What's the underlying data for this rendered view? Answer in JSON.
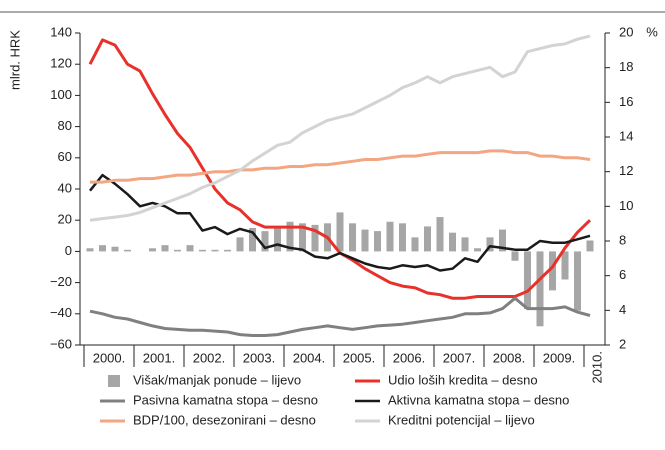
{
  "chart_data": {
    "type": "combo",
    "y_label": "mlrd. HRK",
    "y2_label": "%",
    "x": [
      2000,
      2000.25,
      2000.5,
      2000.75,
      2001,
      2001.25,
      2001.5,
      2001.75,
      2002,
      2002.25,
      2002.5,
      2002.75,
      2003,
      2003.25,
      2003.5,
      2003.75,
      2004,
      2004.25,
      2004.5,
      2004.75,
      2005,
      2005.25,
      2005.5,
      2005.75,
      2006,
      2006.25,
      2006.5,
      2006.75,
      2007,
      2007.25,
      2007.5,
      2007.75,
      2008,
      2008.25,
      2008.5,
      2008.75,
      2009,
      2009.25,
      2009.5,
      2009.75,
      2010
    ],
    "xlim": [
      1999.8,
      2010.3
    ],
    "xticks": [
      {
        "value": 2000,
        "label": "2000."
      },
      {
        "value": 2001,
        "label": "2001."
      },
      {
        "value": 2002,
        "label": "2002."
      },
      {
        "value": 2003,
        "label": "2003."
      },
      {
        "value": 2004,
        "label": "2004."
      },
      {
        "value": 2005,
        "label": "2005."
      },
      {
        "value": 2006,
        "label": "2006."
      },
      {
        "value": 2007,
        "label": "2007."
      },
      {
        "value": 2008,
        "label": "2008."
      },
      {
        "value": 2009,
        "label": "2009."
      },
      {
        "value": 2010,
        "label": "2010."
      }
    ],
    "ylim": [
      -60,
      140
    ],
    "yticks": [
      {
        "value": -60,
        "label": "−60"
      },
      {
        "value": -40,
        "label": "−40"
      },
      {
        "value": -20,
        "label": "−20"
      },
      0,
      20,
      40,
      60,
      80,
      100,
      120,
      140
    ],
    "y2lim": [
      2,
      20
    ],
    "y2ticks": [
      2,
      4,
      6,
      8,
      10,
      12,
      14,
      16,
      18,
      20
    ],
    "series": [
      {
        "name": "Višak/manjak ponude – lijevo",
        "type": "bar",
        "color": "#a6a6a6",
        "values": [
          2,
          4,
          3,
          1,
          0,
          2,
          4,
          1,
          4,
          1,
          1,
          1,
          9,
          15,
          13,
          15,
          19,
          18,
          17,
          18,
          25,
          18,
          14,
          13,
          19,
          18,
          9,
          16,
          22,
          12,
          9,
          2,
          9,
          14,
          -6,
          -37,
          -48,
          -25,
          -18,
          -38,
          7
        ]
      },
      {
        "name": "Udio loših kredita – desno",
        "type": "line",
        "axis": "y2",
        "color": "#e8312a",
        "width": 3,
        "values": [
          18.2,
          19.6,
          19.3,
          18.2,
          17.8,
          16.5,
          15.3,
          14.2,
          13.4,
          12.2,
          11.0,
          10.2,
          9.8,
          9.1,
          8.8,
          8.8,
          8.8,
          8.8,
          8.6,
          8.2,
          7.3,
          6.9,
          6.4,
          6.0,
          5.6,
          5.4,
          5.3,
          5.0,
          4.9,
          4.7,
          4.7,
          4.8,
          4.8,
          4.8,
          4.8,
          5.1,
          5.8,
          6.5,
          7.6,
          8.5,
          9.2
        ]
      },
      {
        "name": "Pasivna kamatna stopa – desno",
        "type": "line",
        "axis": "y2",
        "color": "#808080",
        "width": 3,
        "values": [
          3.95,
          3.8,
          3.6,
          3.5,
          3.3,
          3.1,
          2.95,
          2.9,
          2.85,
          2.85,
          2.8,
          2.75,
          2.6,
          2.55,
          2.55,
          2.6,
          2.75,
          2.9,
          3.0,
          3.1,
          3.0,
          2.9,
          3.0,
          3.1,
          3.15,
          3.2,
          3.3,
          3.4,
          3.5,
          3.6,
          3.8,
          3.8,
          3.85,
          4.1,
          4.7,
          4.1,
          4.1,
          4.1,
          4.2,
          3.9,
          3.7
        ]
      },
      {
        "name": "Aktivna kamatna stopa – desno",
        "type": "line",
        "axis": "y2",
        "color": "#1a1a1a",
        "width": 2.5,
        "values": [
          10.9,
          11.8,
          11.3,
          10.7,
          10.0,
          10.2,
          10.0,
          9.6,
          9.6,
          8.6,
          8.8,
          8.4,
          8.7,
          8.5,
          7.6,
          7.8,
          7.6,
          7.5,
          7.1,
          7.0,
          7.3,
          7.0,
          6.7,
          6.5,
          6.4,
          6.6,
          6.5,
          6.6,
          6.3,
          6.4,
          7.0,
          6.8,
          7.7,
          7.6,
          7.5,
          7.5,
          8.0,
          7.9,
          7.9,
          8.1,
          8.3
        ]
      },
      {
        "name": "BDP/100, desezonirani – desno",
        "type": "line",
        "axis": "y2",
        "color": "#f4a582",
        "width": 3,
        "values": [
          11.4,
          11.4,
          11.5,
          11.5,
          11.6,
          11.6,
          11.7,
          11.8,
          11.8,
          11.9,
          12.0,
          12.0,
          12.1,
          12.1,
          12.2,
          12.2,
          12.3,
          12.3,
          12.4,
          12.4,
          12.5,
          12.6,
          12.7,
          12.7,
          12.8,
          12.9,
          12.9,
          13.0,
          13.1,
          13.1,
          13.1,
          13.1,
          13.2,
          13.2,
          13.1,
          13.1,
          12.9,
          12.9,
          12.8,
          12.8,
          12.7
        ]
      },
      {
        "name": "Kreditni potencijal – lijevo",
        "type": "line",
        "color": "#d3d3d3",
        "width": 3,
        "values": [
          20,
          21,
          22,
          23,
          25,
          28,
          31,
          34,
          37,
          41,
          44,
          48,
          52,
          58,
          63,
          68,
          70,
          76,
          80,
          84,
          86,
          88,
          92,
          96,
          100,
          105,
          108,
          112,
          108,
          112,
          114,
          116,
          118,
          112,
          115,
          128,
          130,
          132,
          133,
          136,
          138
        ]
      }
    ]
  }
}
